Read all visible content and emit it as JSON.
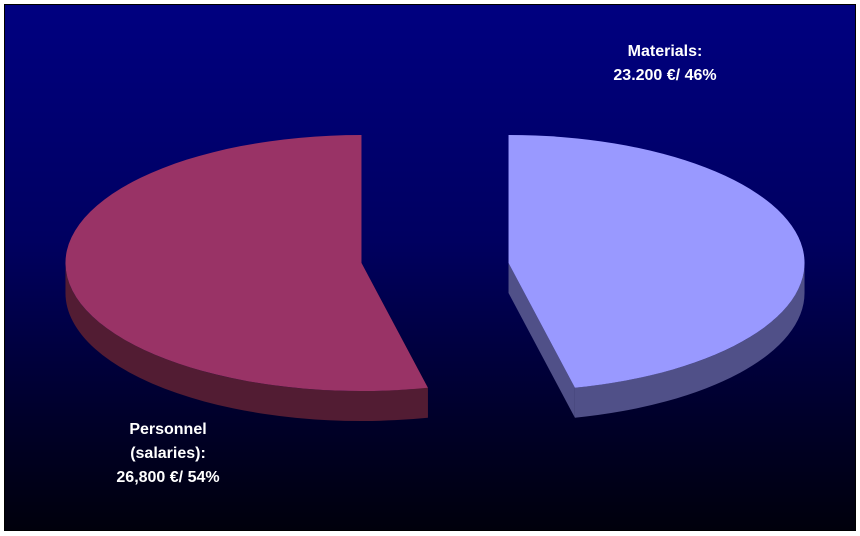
{
  "chart_data": {
    "type": "pie",
    "style": "3d-exploded",
    "title": "",
    "slices": [
      {
        "category": "Materials",
        "value": 23200,
        "percent": 46,
        "label_lines": [
          "Materials:",
          "23.200 €/ 46%"
        ],
        "top_color": "#9999FF",
        "side_color": "#505088"
      },
      {
        "category": "Personnel (salaries)",
        "value": 26800,
        "percent": 54,
        "label_lines": [
          "Personnel",
          "(salaries):",
          "26,800 €/ 54%"
        ],
        "top_color": "#993366",
        "side_color": "#521c33"
      }
    ],
    "background": "#000080",
    "legend": "none",
    "grid": false
  }
}
